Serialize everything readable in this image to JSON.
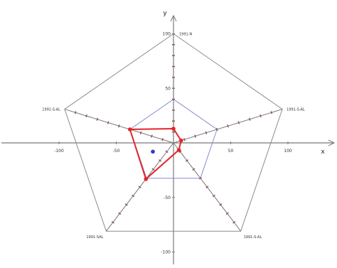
{
  "chart_data": {
    "type": "radar",
    "title": "",
    "xlabel": "x",
    "ylabel": "y",
    "xlim": [
      -135,
      135
    ],
    "ylim": [
      -115,
      115
    ],
    "x_ticks": [
      {
        "value": -100,
        "label": "-100"
      },
      {
        "value": -50,
        "label": "-50"
      },
      {
        "value": 50,
        "label": "50"
      },
      {
        "value": 100,
        "label": "100"
      }
    ],
    "y_ticks": [
      {
        "value": 100,
        "label": "100"
      },
      {
        "value": 50,
        "label": "50"
      },
      {
        "value": -50,
        "label": "-50"
      },
      {
        "value": -100,
        "label": "-100"
      }
    ],
    "spokes": [
      {
        "name": "spoke-top",
        "label": "1991-N",
        "angle_deg": 90
      },
      {
        "name": "spoke-upper-right",
        "label": "1991-S-AL",
        "angle_deg": 18
      },
      {
        "name": "spoke-lower-right",
        "label": "1991-S-AL",
        "angle_deg": -54
      },
      {
        "name": "spoke-lower-left",
        "label": "1991-SAL",
        "angle_deg": -126
      },
      {
        "name": "spoke-upper-left",
        "label": "1991-S-AL",
        "angle_deg": 162
      }
    ],
    "outer_radius": 100,
    "inner_radius": 40,
    "spoke_tick_step": 10,
    "series": [
      {
        "values": [
          13,
          7,
          8,
          41,
          40
        ],
        "color": "#e3262b"
      }
    ],
    "marker": {
      "x": -18,
      "y": -8,
      "color": "#2e3fbf"
    },
    "colors": {
      "axis": "#7a7a7a",
      "outer_pentagon": "#8c8c8c",
      "inner_pentagon": "#8a8ad2",
      "spoke": "#777777",
      "spoke_tick": "#8a5050"
    }
  }
}
